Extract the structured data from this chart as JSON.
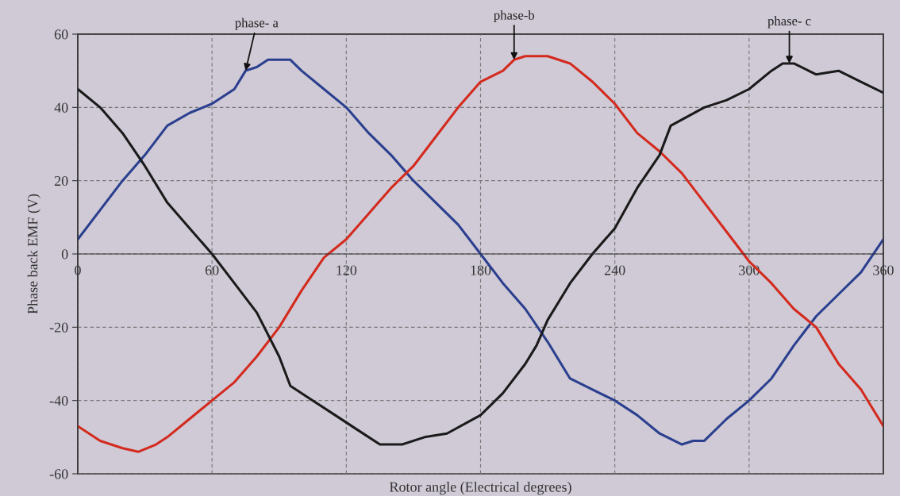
{
  "chart_data": {
    "type": "line",
    "xlabel": "Rotor angle (Electrical degrees)",
    "ylabel": "Phase back EMF (V)",
    "xlim": [
      0,
      360
    ],
    "xticks": [
      0,
      60,
      120,
      180,
      240,
      300,
      360
    ],
    "ylim": [
      -60,
      60
    ],
    "yticks": [
      -60,
      -40,
      -20,
      0,
      20,
      40,
      60
    ],
    "grid": true,
    "line_style": "solid",
    "marker": "none",
    "series": [
      {
        "color": "#2b3f8f",
        "x": [
          0,
          10,
          20,
          30,
          40,
          50,
          60,
          70,
          75,
          80,
          85,
          95,
          100,
          110,
          120,
          130,
          140,
          150,
          160,
          170,
          180,
          190,
          200,
          210,
          220,
          230,
          240,
          250,
          260,
          270,
          275,
          280,
          290,
          300,
          310,
          320,
          330,
          340,
          350,
          360
        ],
        "values": [
          4,
          12,
          20,
          27,
          35,
          38.5,
          41,
          45,
          50,
          51,
          53,
          53,
          50,
          45,
          40,
          33,
          27,
          20,
          14,
          8,
          0,
          -8,
          -15,
          -24,
          -34,
          -37,
          -40,
          -44,
          -49,
          -52,
          -51,
          -51,
          -45,
          -40,
          -34,
          -25,
          -17,
          -11,
          -5,
          4
        ]
      },
      {
        "color": "#d42a1e",
        "x": [
          0,
          10,
          20,
          27,
          35,
          40,
          50,
          60,
          70,
          80,
          90,
          100,
          110,
          120,
          130,
          140,
          150,
          160,
          170,
          180,
          190,
          195,
          200,
          210,
          220,
          230,
          240,
          250,
          260,
          270,
          280,
          290,
          300,
          310,
          320,
          330,
          340,
          350,
          360
        ],
        "values": [
          -47,
          -51,
          -53,
          -54,
          -52,
          -50,
          -45,
          -40,
          -35,
          -28,
          -20,
          -10,
          -1,
          4,
          11,
          18,
          24,
          32,
          40,
          47,
          50,
          53,
          54,
          54,
          52,
          47,
          41,
          33,
          28,
          22,
          14,
          6,
          -2,
          -8,
          -15,
          -20,
          -30,
          -37,
          -47
        ]
      },
      {
        "color": "#1a1a1a",
        "x": [
          0,
          10,
          20,
          30,
          40,
          50,
          60,
          70,
          80,
          90,
          95,
          105,
          115,
          125,
          135,
          145,
          155,
          165,
          180,
          190,
          200,
          205,
          210,
          220,
          230,
          240,
          250,
          260,
          265,
          280,
          290,
          300,
          310,
          315,
          320,
          330,
          340,
          350,
          360
        ],
        "values": [
          45,
          40,
          33,
          24,
          14,
          7,
          0,
          -8,
          -16,
          -28,
          -36,
          -40,
          -44,
          -48,
          -52,
          -52,
          -50,
          -49,
          -44,
          -38,
          -30,
          -25,
          -18,
          -8,
          0,
          7,
          18,
          27,
          35,
          40,
          42,
          45,
          50,
          52,
          52,
          49,
          50,
          47,
          44
        ]
      }
    ],
    "annotations": [
      {
        "text": "phase- a",
        "x": 75,
        "y": 50
      },
      {
        "text": "phase-b",
        "x": 195,
        "y": 53
      },
      {
        "text": "phase- c",
        "x": 318,
        "y": 52
      }
    ]
  }
}
